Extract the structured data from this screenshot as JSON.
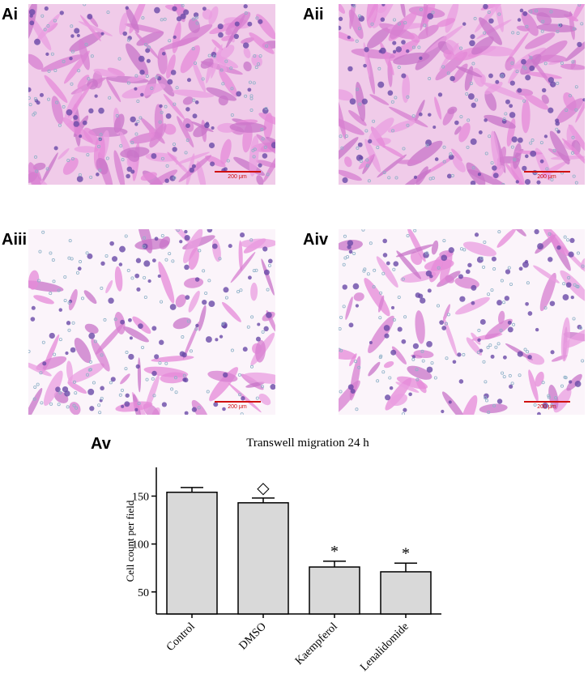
{
  "panels": [
    {
      "label": "Ai",
      "scale_bar": "200 μm"
    },
    {
      "label": "Aii",
      "scale_bar": "200 μm"
    },
    {
      "label": "Aiii",
      "scale_bar": "200 μm"
    },
    {
      "label": "Aiv",
      "scale_bar": "200 μm"
    }
  ],
  "chart_label": "Av",
  "chart_data": {
    "type": "bar",
    "title": "Transwell migration 24 h",
    "y_label": "Cell count per field",
    "categories": [
      "Control",
      "DMSO",
      "Kaempferol",
      "Lenalidomide"
    ],
    "values": [
      154,
      143,
      76,
      71
    ],
    "errors": [
      5,
      5,
      6,
      9
    ],
    "color": "#d9d9d9",
    "ylim": [
      27,
      180
    ],
    "yticks": [
      50,
      100,
      150
    ],
    "markers": [
      {
        "category": "DMSO",
        "text": "◇"
      },
      {
        "category": "Kaempferol",
        "text": "*"
      },
      {
        "category": "Lenalidomide",
        "text": "*"
      }
    ]
  }
}
